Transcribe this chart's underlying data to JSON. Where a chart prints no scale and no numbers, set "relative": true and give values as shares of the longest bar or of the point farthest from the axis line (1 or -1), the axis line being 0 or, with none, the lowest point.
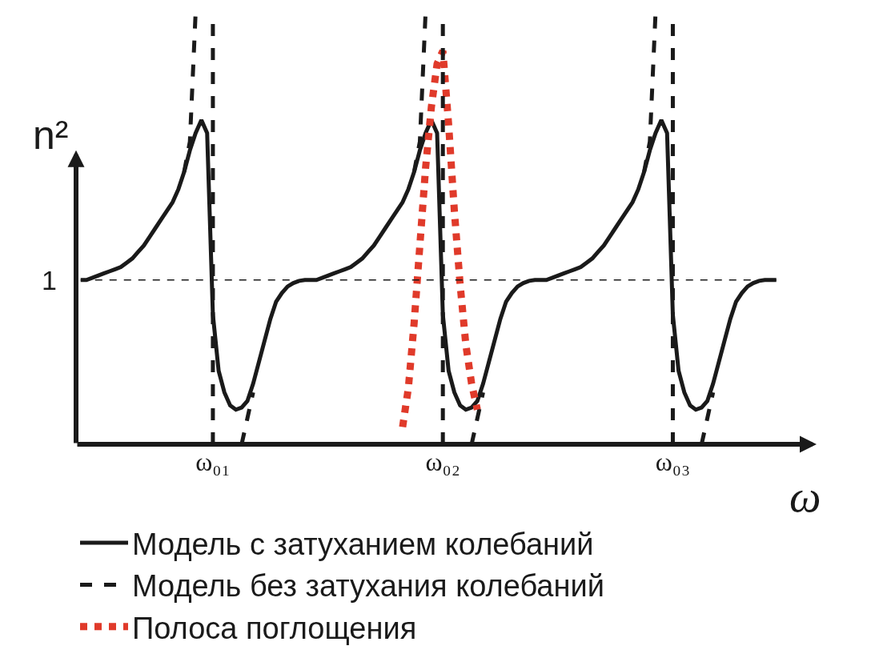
{
  "chart_data": {
    "type": "line",
    "relative": true,
    "xlabel": "ω",
    "ylabel": "n²",
    "categories": [
      null,
      null,
      null,
      null,
      null,
      null,
      null,
      null,
      null,
      null,
      null,
      null,
      null,
      null,
      null,
      null,
      null,
      null,
      null,
      null,
      null,
      null,
      null,
      "ω₀₁",
      null,
      null,
      null,
      null,
      null,
      null,
      null,
      null,
      null,
      null,
      null,
      null,
      null,
      null,
      null,
      null,
      null,
      null,
      null,
      null,
      null,
      null,
      null,
      null,
      null,
      null,
      null,
      null,
      null,
      null,
      null,
      null,
      null,
      null,
      null,
      null,
      null,
      null,
      null,
      "ω₀₂",
      null,
      null,
      null,
      null,
      null,
      null,
      null,
      null,
      null,
      null,
      null,
      null,
      null,
      null,
      null,
      null,
      null,
      null,
      null,
      null,
      null,
      null,
      null,
      null,
      null,
      null,
      null,
      null,
      null,
      null,
      null,
      null,
      null,
      null,
      null,
      null,
      null,
      null,
      null,
      "ω₀₃",
      null,
      null,
      null,
      null,
      null,
      null,
      null,
      null,
      null,
      null,
      null,
      null,
      null,
      null,
      null,
      null,
      null,
      null
    ],
    "legend": "bottom",
    "marker": "none",
    "series": [
      {
        "name": "Модель с затуханием колебаний",
        "color": "#1a1a1a",
        "line_style": "solid",
        "values": [
          0.38,
          0.38,
          0.385,
          0.39,
          0.395,
          0.4,
          0.405,
          0.41,
          0.42,
          0.43,
          0.445,
          0.46,
          0.48,
          0.5,
          0.52,
          0.54,
          0.56,
          0.59,
          0.63,
          0.68,
          0.72,
          0.75,
          0.72,
          0.3,
          0.17,
          0.12,
          0.09,
          0.08,
          0.085,
          0.1,
          0.14,
          0.19,
          0.24,
          0.29,
          0.33,
          0.35,
          0.365,
          0.373,
          0.378,
          0.38,
          0.38,
          0.38,
          0.385,
          0.39,
          0.395,
          0.4,
          0.405,
          0.41,
          0.42,
          0.43,
          0.445,
          0.46,
          0.48,
          0.5,
          0.52,
          0.54,
          0.56,
          0.59,
          0.63,
          0.68,
          0.72,
          0.75,
          0.72,
          0.3,
          0.17,
          0.12,
          0.09,
          0.08,
          0.085,
          0.1,
          0.14,
          0.19,
          0.24,
          0.29,
          0.33,
          0.35,
          0.365,
          0.373,
          0.378,
          0.38,
          0.38,
          0.38,
          0.385,
          0.39,
          0.395,
          0.4,
          0.405,
          0.41,
          0.42,
          0.43,
          0.445,
          0.46,
          0.48,
          0.5,
          0.52,
          0.54,
          0.56,
          0.59,
          0.63,
          0.68,
          0.72,
          0.75,
          0.72,
          0.3,
          0.17,
          0.12,
          0.09,
          0.08,
          0.085,
          0.1,
          0.14,
          0.19,
          0.24,
          0.29,
          0.33,
          0.35,
          0.365,
          0.373,
          0.378,
          0.38,
          0.38,
          0.38
        ]
      },
      {
        "name": "Модель без затухания колебаний",
        "color": "#1a1a1a",
        "line_style": "dashed",
        "values": [
          null,
          null,
          null,
          null,
          null,
          null,
          null,
          null,
          null,
          null,
          null,
          null,
          null,
          null,
          null,
          null,
          null,
          null,
          0.63,
          0.7,
          1.0,
          null,
          null,
          null,
          null,
          null,
          null,
          null,
          0.0,
          0.06,
          0.12,
          null,
          null,
          null,
          null,
          null,
          null,
          null,
          null,
          null,
          null,
          null,
          null,
          null,
          null,
          null,
          null,
          null,
          null,
          null,
          null,
          null,
          null,
          null,
          null,
          null,
          null,
          null,
          0.63,
          0.7,
          1.0,
          null,
          null,
          null,
          null,
          null,
          null,
          null,
          0.0,
          0.06,
          0.12,
          null,
          null,
          null,
          null,
          null,
          null,
          null,
          null,
          null,
          null,
          null,
          null,
          null,
          null,
          null,
          null,
          null,
          null,
          null,
          null,
          null,
          null,
          null,
          null,
          null,
          null,
          null,
          0.63,
          0.7,
          1.0,
          null,
          null,
          null,
          null,
          null,
          null,
          null,
          0.0,
          0.06,
          0.12,
          null,
          null,
          null,
          null,
          null,
          null,
          null,
          null,
          null,
          null,
          null
        ]
      },
      {
        "name": "Полоса поглощения",
        "color": "#e03a2a",
        "line_style": "dotted",
        "values": [
          null,
          null,
          null,
          null,
          null,
          null,
          null,
          null,
          null,
          null,
          null,
          null,
          null,
          null,
          null,
          null,
          null,
          null,
          null,
          null,
          null,
          null,
          null,
          null,
          null,
          null,
          null,
          null,
          null,
          null,
          null,
          null,
          null,
          null,
          null,
          null,
          null,
          null,
          null,
          null,
          null,
          null,
          null,
          null,
          null,
          null,
          null,
          null,
          null,
          null,
          null,
          null,
          null,
          null,
          null,
          null,
          0.04,
          0.13,
          0.28,
          0.46,
          0.64,
          0.78,
          0.88,
          0.91,
          0.74,
          0.54,
          0.37,
          0.23,
          0.14,
          0.08,
          null,
          null,
          null,
          null,
          null,
          null,
          null,
          null,
          null,
          null,
          null,
          null,
          null,
          null,
          null,
          null,
          null,
          null,
          null,
          null,
          null,
          null,
          null,
          null,
          null,
          null,
          null,
          null,
          null,
          null,
          null,
          null,
          null,
          null,
          null,
          null,
          null,
          null,
          null,
          null,
          null,
          null,
          null,
          null,
          null,
          null,
          null,
          null,
          null,
          null,
          null,
          null
        ]
      }
    ],
    "annotations": [
      "1"
    ],
    "ref_lines": [
      {
        "axis": "y",
        "value": 0.38,
        "line_style": "dashed",
        "color": "#1a1a1a"
      },
      {
        "axis": "x",
        "value": "ω₀₁",
        "line_style": "dashed",
        "color": "#1a1a1a"
      },
      {
        "axis": "x",
        "value": "ω₀₂",
        "line_style": "dashed",
        "color": "#1a1a1a"
      },
      {
        "axis": "x",
        "value": "ω₀₃",
        "line_style": "dashed",
        "color": "#1a1a1a"
      }
    ]
  }
}
